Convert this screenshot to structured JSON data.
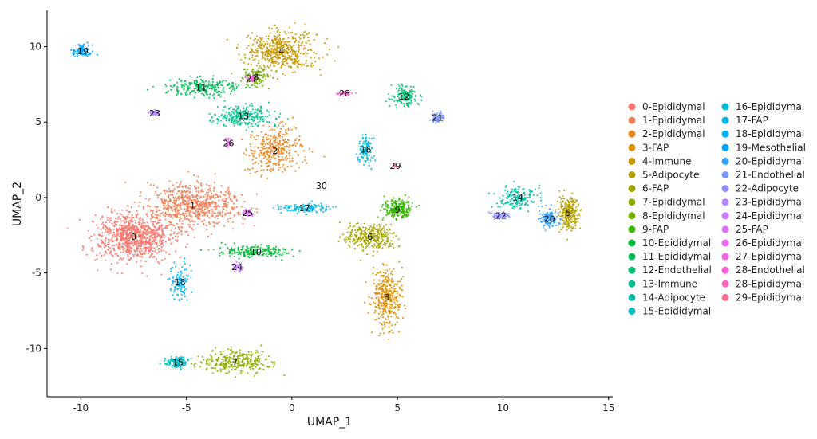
{
  "chart_data": {
    "type": "scatter",
    "title": "",
    "xlabel": "UMAP_1",
    "ylabel": "UMAP_2",
    "xlim": [
      -11.6,
      15.2
    ],
    "ylim": [
      -13.2,
      12.4
    ],
    "x_ticks": [
      -10,
      -5,
      0,
      5,
      10,
      15
    ],
    "x_tick_labels": [
      "-10",
      "-5",
      "0",
      "5",
      "10",
      "15"
    ],
    "y_ticks": [
      -10,
      -5,
      0,
      5,
      10
    ],
    "y_tick_labels": [
      "-10",
      "-5",
      "0",
      "5",
      "10"
    ],
    "grid": false,
    "legend_position": "right",
    "legend_columns": 2,
    "series": [
      {
        "name": "0-Epididymal",
        "color": "#F8766D",
        "label": "0",
        "center": [
          -7.5,
          -2.6
        ]
      },
      {
        "name": "1-Epididymal",
        "color": "#F27D52",
        "label": "1",
        "center": [
          -4.7,
          -0.5
        ]
      },
      {
        "name": "2-Epididymal",
        "color": "#E7851E",
        "label": "2",
        "center": [
          -0.8,
          3.1
        ]
      },
      {
        "name": "3-FAP",
        "color": "#DB8E00",
        "label": "3",
        "center": [
          4.5,
          -6.6
        ]
      },
      {
        "name": "4-Immune",
        "color": "#C79800",
        "label": "4",
        "center": [
          -0.5,
          9.7
        ]
      },
      {
        "name": "5-Adipocyte",
        "color": "#B49F00",
        "label": "5",
        "center": [
          13.1,
          -1.0
        ]
      },
      {
        "name": "6-FAP",
        "color": "#A3A500",
        "label": "6",
        "center": [
          3.7,
          -2.6
        ]
      },
      {
        "name": "7-Epididymal",
        "color": "#8EAB00",
        "label": "7",
        "center": [
          -2.7,
          -10.9
        ]
      },
      {
        "name": "8-Epididymal",
        "color": "#6FB000",
        "label": "8",
        "center": [
          -1.7,
          8.0
        ]
      },
      {
        "name": "9-FAP",
        "color": "#39B600",
        "label": "9",
        "center": [
          5.0,
          -0.8
        ]
      },
      {
        "name": "10-Epididymal",
        "color": "#00BA38",
        "label": "10",
        "center": [
          -1.7,
          -3.6
        ]
      },
      {
        "name": "11-Epididymal",
        "color": "#00BC55",
        "label": "11",
        "center": [
          -4.3,
          7.3
        ]
      },
      {
        "name": "12-Endothelial",
        "color": "#00BF74",
        "label": "12",
        "center": [
          5.3,
          6.7
        ]
      },
      {
        "name": "13-Immune",
        "color": "#00C08D",
        "label": "13",
        "center": [
          -2.3,
          5.4
        ]
      },
      {
        "name": "14-Adipocyte",
        "color": "#00C1A7",
        "label": "14",
        "center": [
          10.7,
          0.0
        ]
      },
      {
        "name": "15-Epididymal",
        "color": "#00BFC4",
        "label": "15",
        "center": [
          -5.4,
          -10.9
        ]
      },
      {
        "name": "16-Epididymal",
        "color": "#00BCD8",
        "label": "16",
        "center": [
          3.5,
          3.2
        ]
      },
      {
        "name": "17-FAP",
        "color": "#00B8E7",
        "label": "17",
        "center": [
          0.6,
          -0.7
        ]
      },
      {
        "name": "18-Epididymal",
        "color": "#00B0F6",
        "label": "18",
        "center": [
          -5.3,
          -5.6
        ]
      },
      {
        "name": "19-Mesothelial",
        "color": "#00A5FF",
        "label": "19",
        "center": [
          -9.9,
          9.7
        ]
      },
      {
        "name": "20-Epididymal",
        "color": "#35A2FF",
        "label": "20",
        "center": [
          12.2,
          -1.4
        ]
      },
      {
        "name": "21-Endothelial",
        "color": "#7997FF",
        "label": "21",
        "center": [
          6.9,
          5.3
        ]
      },
      {
        "name": "22-Adipocyte",
        "color": "#9590FF",
        "label": "22",
        "center": [
          9.9,
          -1.2
        ]
      },
      {
        "name": "23-Epididymal",
        "color": "#B385FF",
        "label": "23",
        "center": [
          -6.5,
          5.6
        ]
      },
      {
        "name": "24-Epididymal",
        "color": "#C77CFF",
        "label": "24",
        "center": [
          -2.6,
          -4.6
        ]
      },
      {
        "name": "25-FAP",
        "color": "#DC71FA",
        "label": "25",
        "center": [
          -2.1,
          -1.0
        ]
      },
      {
        "name": "26-Epididymal",
        "color": "#EB66ED",
        "label": "26",
        "center": [
          -3.0,
          3.6
        ]
      },
      {
        "name": "27-Epididymal",
        "color": "#F564E3",
        "label": "27",
        "center": [
          -1.9,
          7.9
        ]
      },
      {
        "name": "28-Endothelial",
        "color": "#FB61D7",
        "label": "28",
        "center": [
          2.5,
          6.9
        ]
      },
      {
        "name": "28-Epididymal",
        "color": "#FF62BC",
        "label": "",
        "center": [
          2.5,
          6.9
        ]
      },
      {
        "name": "29-Epididymal",
        "color": "#FF6C91",
        "label": "29",
        "center": [
          4.9,
          2.1
        ]
      }
    ],
    "extra_labels": [
      {
        "label": "30",
        "center": [
          1.4,
          0.8
        ],
        "color": "#FF6A98"
      }
    ]
  }
}
